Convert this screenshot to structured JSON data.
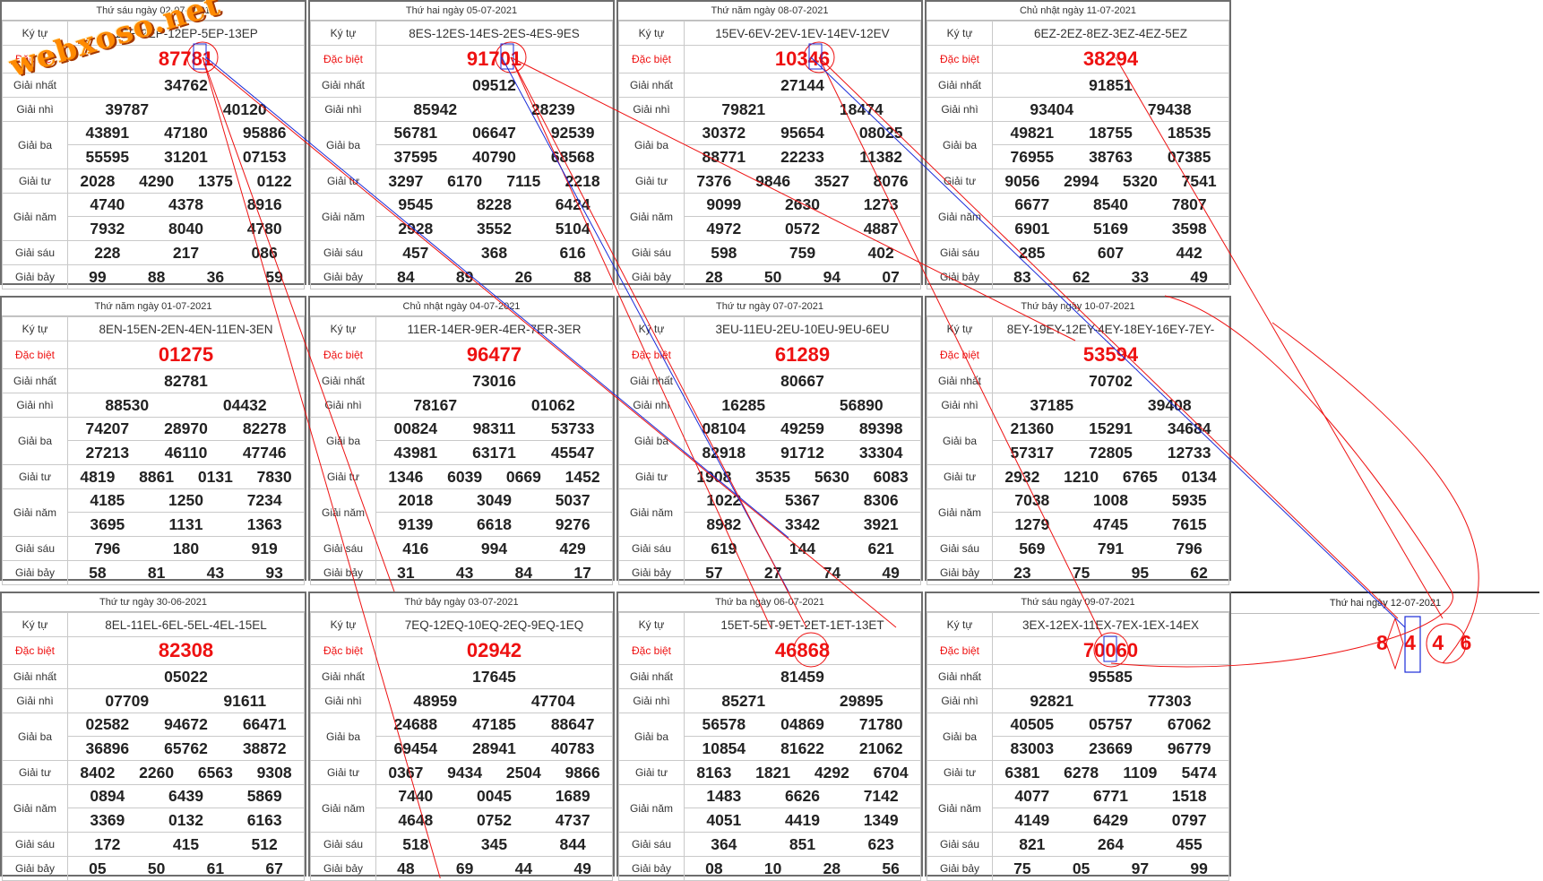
{
  "labels": {
    "ky_tu": "Ký tự",
    "dac_biet": "Đặc biệt",
    "giai_nhat": "Giải nhất",
    "giai_nhi": "Giải nhì",
    "giai_ba": "Giải ba",
    "giai_tu": "Giải tư",
    "giai_nam": "Giải năm",
    "giai_sau": "Giải sáu",
    "giai_bay": "Giải bảy"
  },
  "logo": "webxoso.net",
  "tickets": [
    {
      "date": "Thứ sáu ngày 02-07-2021",
      "symbols": "1EP-2EP-12EP-5EP-13EP",
      "db": "87781",
      "g1": "34762",
      "g2": [
        "39787",
        "40120"
      ],
      "g3": [
        "43891",
        "47180",
        "95886",
        "55595",
        "31201",
        "07153"
      ],
      "g4": [
        "2028",
        "4290",
        "1375",
        "0122"
      ],
      "g5": [
        "4740",
        "4378",
        "8916",
        "7932",
        "8040",
        "4780"
      ],
      "g6": [
        "228",
        "217",
        "086"
      ],
      "g7": [
        "99",
        "88",
        "36",
        "59"
      ]
    },
    {
      "date": "Thứ hai ngày 05-07-2021",
      "symbols": "8ES-12ES-14ES-2ES-4ES-9ES",
      "db": "91701",
      "g1": "09512",
      "g2": [
        "85942",
        "28239"
      ],
      "g3": [
        "56781",
        "06647",
        "92539",
        "37595",
        "40790",
        "68568"
      ],
      "g4": [
        "3297",
        "6170",
        "7115",
        "2218"
      ],
      "g5": [
        "9545",
        "8228",
        "6424",
        "2928",
        "3552",
        "5104"
      ],
      "g6": [
        "457",
        "368",
        "616"
      ],
      "g7": [
        "84",
        "89",
        "26",
        "88"
      ]
    },
    {
      "date": "Thứ năm ngày 08-07-2021",
      "symbols": "15EV-6EV-2EV-1EV-14EV-12EV",
      "db": "10346",
      "g1": "27144",
      "g2": [
        "79821",
        "18474"
      ],
      "g3": [
        "30372",
        "95654",
        "08025",
        "88771",
        "22233",
        "11382"
      ],
      "g4": [
        "7376",
        "9846",
        "3527",
        "8076"
      ],
      "g5": [
        "9099",
        "2630",
        "1273",
        "4972",
        "0572",
        "4887"
      ],
      "g6": [
        "598",
        "759",
        "402"
      ],
      "g7": [
        "28",
        "50",
        "94",
        "07"
      ]
    },
    {
      "date": "Chủ nhật ngày 11-07-2021",
      "symbols": "6EZ-2EZ-8EZ-3EZ-4EZ-5EZ",
      "db": "38294",
      "g1": "91851",
      "g2": [
        "93404",
        "79438"
      ],
      "g3": [
        "49821",
        "18755",
        "18535",
        "76955",
        "38763",
        "07385"
      ],
      "g4": [
        "9056",
        "2994",
        "5320",
        "7541"
      ],
      "g5": [
        "6677",
        "8540",
        "7807",
        "6901",
        "5169",
        "3598"
      ],
      "g6": [
        "285",
        "607",
        "442"
      ],
      "g7": [
        "83",
        "62",
        "33",
        "49"
      ]
    },
    {
      "date": "Thứ năm ngày 01-07-2021",
      "symbols": "8EN-15EN-2EN-4EN-11EN-3EN",
      "db": "01275",
      "g1": "82781",
      "g2": [
        "88530",
        "04432"
      ],
      "g3": [
        "74207",
        "28970",
        "82278",
        "27213",
        "46110",
        "47746"
      ],
      "g4": [
        "4819",
        "8861",
        "0131",
        "7830"
      ],
      "g5": [
        "4185",
        "1250",
        "7234",
        "3695",
        "1131",
        "1363"
      ],
      "g6": [
        "796",
        "180",
        "919"
      ],
      "g7": [
        "58",
        "81",
        "43",
        "93"
      ]
    },
    {
      "date": "Chủ nhật ngày 04-07-2021",
      "symbols": "11ER-14ER-9ER-4ER-7ER-3ER",
      "db": "96477",
      "g1": "73016",
      "g2": [
        "78167",
        "01062"
      ],
      "g3": [
        "00824",
        "98311",
        "53733",
        "43981",
        "63171",
        "45547"
      ],
      "g4": [
        "1346",
        "6039",
        "0669",
        "1452"
      ],
      "g5": [
        "2018",
        "3049",
        "5037",
        "9139",
        "6618",
        "9276"
      ],
      "g6": [
        "416",
        "994",
        "429"
      ],
      "g7": [
        "31",
        "43",
        "84",
        "17"
      ]
    },
    {
      "date": "Thứ tư ngày 07-07-2021",
      "symbols": "3EU-11EU-2EU-10EU-9EU-6EU",
      "db": "61289",
      "g1": "80667",
      "g2": [
        "16285",
        "56890"
      ],
      "g3": [
        "08104",
        "49259",
        "89398",
        "82918",
        "91712",
        "33304"
      ],
      "g4": [
        "1908",
        "3535",
        "5630",
        "6083"
      ],
      "g5": [
        "1022",
        "5367",
        "8306",
        "8982",
        "3342",
        "3921"
      ],
      "g6": [
        "619",
        "144",
        "621"
      ],
      "g7": [
        "57",
        "27",
        "74",
        "49"
      ]
    },
    {
      "date": "Thứ bảy ngày 10-07-2021",
      "symbols": "8EY-19EY-12EY-4EY-18EY-16EY-7EY-",
      "db": "53594",
      "g1": "70702",
      "g2": [
        "37185",
        "39408"
      ],
      "g3": [
        "21360",
        "15291",
        "34684",
        "57317",
        "72805",
        "12733"
      ],
      "g4": [
        "2932",
        "1210",
        "6765",
        "0134"
      ],
      "g5": [
        "7038",
        "1008",
        "5935",
        "1279",
        "4745",
        "7615"
      ],
      "g6": [
        "569",
        "791",
        "796"
      ],
      "g7": [
        "23",
        "75",
        "95",
        "62"
      ]
    },
    {
      "date": "Thứ tư ngày 30-06-2021",
      "symbols": "8EL-11EL-6EL-5EL-4EL-15EL",
      "db": "82308",
      "g1": "05022",
      "g2": [
        "07709",
        "91611"
      ],
      "g3": [
        "02582",
        "94672",
        "66471",
        "36896",
        "65762",
        "38872"
      ],
      "g4": [
        "8402",
        "2260",
        "6563",
        "9308"
      ],
      "g5": [
        "0894",
        "6439",
        "5869",
        "3369",
        "0132",
        "6163"
      ],
      "g6": [
        "172",
        "415",
        "512"
      ],
      "g7": [
        "05",
        "50",
        "61",
        "67"
      ]
    },
    {
      "date": "Thứ bảy ngày 03-07-2021",
      "symbols": "7EQ-12EQ-10EQ-2EQ-9EQ-1EQ",
      "db": "02942",
      "g1": "17645",
      "g2": [
        "48959",
        "47704"
      ],
      "g3": [
        "24688",
        "47185",
        "88647",
        "69454",
        "28941",
        "40783"
      ],
      "g4": [
        "0367",
        "9434",
        "2504",
        "9866"
      ],
      "g5": [
        "7440",
        "0045",
        "1689",
        "4648",
        "0752",
        "4737"
      ],
      "g6": [
        "518",
        "345",
        "844"
      ],
      "g7": [
        "48",
        "69",
        "44",
        "49"
      ]
    },
    {
      "date": "Thứ ba ngày 06-07-2021",
      "symbols": "15ET-5ET-9ET-2ET-1ET-13ET",
      "db": "46868",
      "g1": "81459",
      "g2": [
        "85271",
        "29895"
      ],
      "g3": [
        "56578",
        "04869",
        "71780",
        "10854",
        "81622",
        "21062"
      ],
      "g4": [
        "8163",
        "1821",
        "4292",
        "6704"
      ],
      "g5": [
        "1483",
        "6626",
        "7142",
        "4051",
        "4419",
        "1349"
      ],
      "g6": [
        "364",
        "851",
        "623"
      ],
      "g7": [
        "08",
        "10",
        "28",
        "56"
      ]
    },
    {
      "date": "Thứ sáu ngày 09-07-2021",
      "symbols": "3EX-12EX-11EX-7EX-1EX-14EX",
      "db": "70060",
      "g1": "95585",
      "g2": [
        "92821",
        "77303"
      ],
      "g3": [
        "40505",
        "05757",
        "67062",
        "83003",
        "23669",
        "96779"
      ],
      "g4": [
        "6381",
        "6278",
        "1109",
        "5474"
      ],
      "g5": [
        "4077",
        "6771",
        "1518",
        "4149",
        "6429",
        "0797"
      ],
      "g6": [
        "821",
        "264",
        "455"
      ],
      "g7": [
        "75",
        "05",
        "97",
        "99"
      ]
    }
  ],
  "prediction": {
    "date": "Thứ hai ngày 12-07-2021",
    "digits": "8 4 4 6"
  },
  "colors": {
    "special": "#e11",
    "line_red": "#e11",
    "line_blue": "#1a2bd8",
    "logo": "#ff8a00"
  }
}
